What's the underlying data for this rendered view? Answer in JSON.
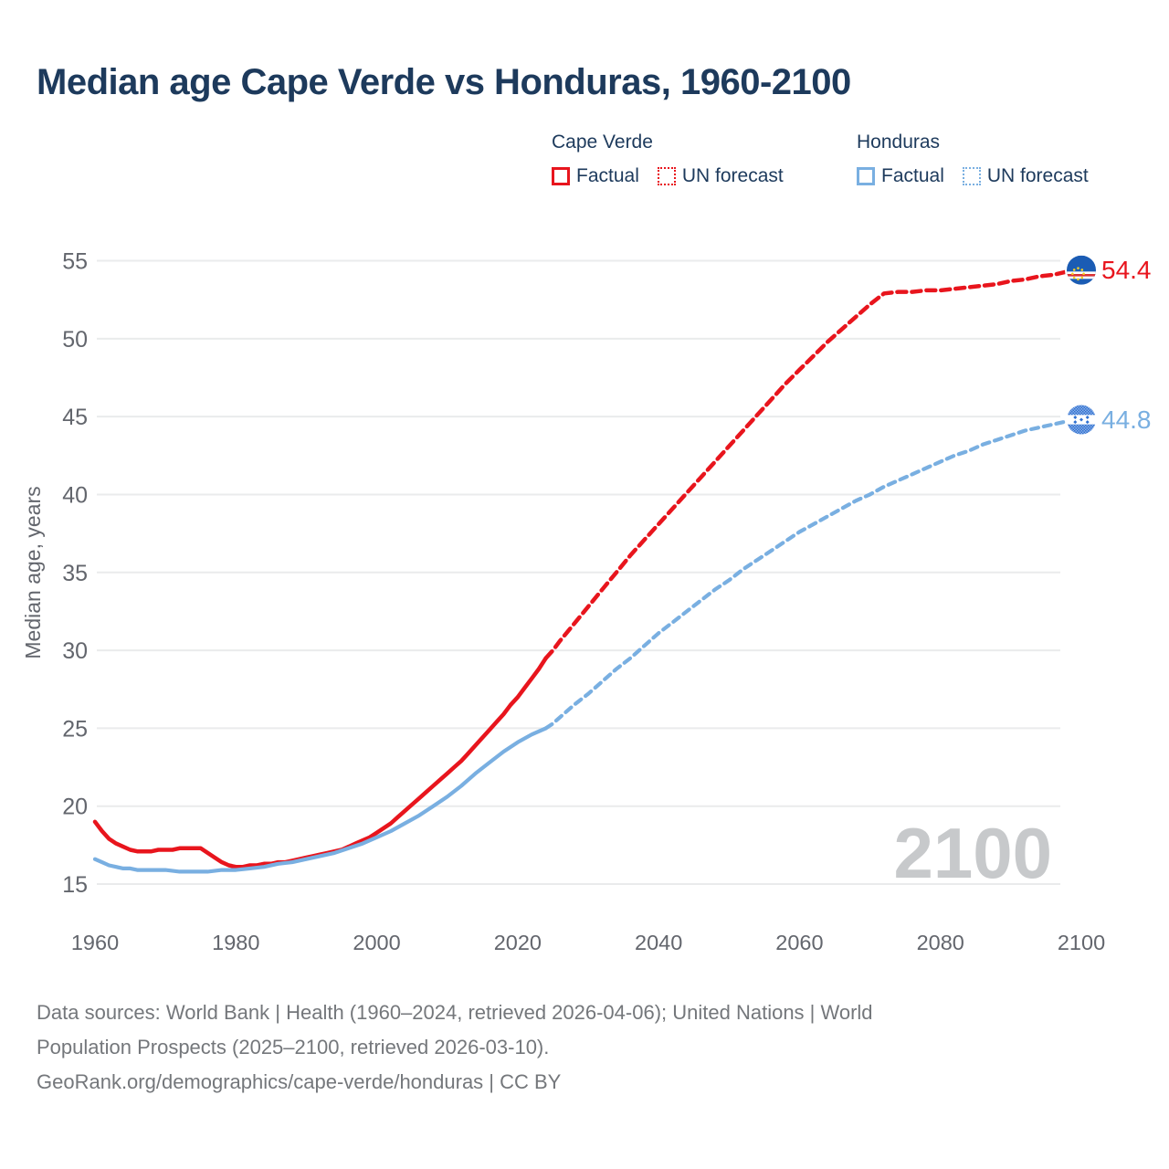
{
  "page": {
    "title": "Median age Cape Verde vs Honduras, 1960-2100"
  },
  "legend": {
    "groups": [
      {
        "label": "Cape Verde",
        "color": "#e8151d",
        "items": [
          {
            "label": "Factual",
            "style": "solid"
          },
          {
            "label": "UN forecast",
            "style": "dotted"
          }
        ]
      },
      {
        "label": "Honduras",
        "color": "#79afe1",
        "items": [
          {
            "label": "Factual",
            "style": "solid"
          },
          {
            "label": "UN forecast",
            "style": "dotted"
          }
        ]
      }
    ]
  },
  "chart_data": {
    "type": "line",
    "title": "Median age Cape Verde vs Honduras, 1960-2100",
    "xlabel": "",
    "ylabel": "Median age, years",
    "xlim": [
      1960,
      2100
    ],
    "ylim": [
      15,
      55
    ],
    "xticks": [
      1960,
      1980,
      2000,
      2020,
      2040,
      2060,
      2080,
      2100
    ],
    "yticks": [
      15,
      20,
      25,
      30,
      35,
      40,
      45,
      50,
      55
    ],
    "grid": "horizontal",
    "legend_position": "top-right",
    "watermark": "2100",
    "series": [
      {
        "name": "Cape Verde factual",
        "country": "Cape Verde",
        "kind": "factual",
        "color": "#e8151d",
        "dash": "solid",
        "points": [
          [
            1960,
            19.0
          ],
          [
            1961,
            18.4
          ],
          [
            1962,
            17.9
          ],
          [
            1963,
            17.6
          ],
          [
            1964,
            17.4
          ],
          [
            1965,
            17.2
          ],
          [
            1966,
            17.1
          ],
          [
            1967,
            17.1
          ],
          [
            1968,
            17.1
          ],
          [
            1969,
            17.2
          ],
          [
            1970,
            17.2
          ],
          [
            1971,
            17.2
          ],
          [
            1972,
            17.3
          ],
          [
            1973,
            17.3
          ],
          [
            1974,
            17.3
          ],
          [
            1975,
            17.3
          ],
          [
            1976,
            17.0
          ],
          [
            1977,
            16.7
          ],
          [
            1978,
            16.4
          ],
          [
            1979,
            16.2
          ],
          [
            1980,
            16.1
          ],
          [
            1981,
            16.1
          ],
          [
            1982,
            16.2
          ],
          [
            1983,
            16.2
          ],
          [
            1984,
            16.3
          ],
          [
            1985,
            16.3
          ],
          [
            1986,
            16.4
          ],
          [
            1987,
            16.4
          ],
          [
            1988,
            16.5
          ],
          [
            1989,
            16.6
          ],
          [
            1990,
            16.7
          ],
          [
            1991,
            16.8
          ],
          [
            1992,
            16.9
          ],
          [
            1993,
            17.0
          ],
          [
            1994,
            17.1
          ],
          [
            1995,
            17.2
          ],
          [
            1996,
            17.4
          ],
          [
            1997,
            17.6
          ],
          [
            1998,
            17.8
          ],
          [
            1999,
            18.0
          ],
          [
            2000,
            18.3
          ],
          [
            2001,
            18.6
          ],
          [
            2002,
            18.9
          ],
          [
            2003,
            19.3
          ],
          [
            2004,
            19.7
          ],
          [
            2005,
            20.1
          ],
          [
            2006,
            20.5
          ],
          [
            2007,
            20.9
          ],
          [
            2008,
            21.3
          ],
          [
            2009,
            21.7
          ],
          [
            2010,
            22.1
          ],
          [
            2011,
            22.5
          ],
          [
            2012,
            22.9
          ],
          [
            2013,
            23.4
          ],
          [
            2014,
            23.9
          ],
          [
            2015,
            24.4
          ],
          [
            2016,
            24.9
          ],
          [
            2017,
            25.4
          ],
          [
            2018,
            25.9
          ],
          [
            2019,
            26.5
          ],
          [
            2020,
            27.0
          ],
          [
            2021,
            27.6
          ],
          [
            2022,
            28.2
          ],
          [
            2023,
            28.8
          ],
          [
            2024,
            29.5
          ]
        ]
      },
      {
        "name": "Cape Verde UN forecast",
        "country": "Cape Verde",
        "kind": "forecast",
        "color": "#e8151d",
        "dash": "dashed",
        "points": [
          [
            2024,
            29.5
          ],
          [
            2025,
            30.0
          ],
          [
            2026,
            30.6
          ],
          [
            2028,
            31.7
          ],
          [
            2030,
            32.8
          ],
          [
            2032,
            33.9
          ],
          [
            2034,
            35.0
          ],
          [
            2036,
            36.1
          ],
          [
            2038,
            37.1
          ],
          [
            2040,
            38.1
          ],
          [
            2042,
            39.1
          ],
          [
            2044,
            40.1
          ],
          [
            2046,
            41.1
          ],
          [
            2048,
            42.1
          ],
          [
            2050,
            43.1
          ],
          [
            2052,
            44.1
          ],
          [
            2054,
            45.1
          ],
          [
            2056,
            46.1
          ],
          [
            2058,
            47.1
          ],
          [
            2060,
            48.0
          ],
          [
            2062,
            48.9
          ],
          [
            2064,
            49.8
          ],
          [
            2066,
            50.6
          ],
          [
            2068,
            51.4
          ],
          [
            2070,
            52.2
          ],
          [
            2072,
            52.9
          ],
          [
            2074,
            53.0
          ],
          [
            2076,
            53.0
          ],
          [
            2078,
            53.1
          ],
          [
            2080,
            53.1
          ],
          [
            2082,
            53.2
          ],
          [
            2084,
            53.3
          ],
          [
            2086,
            53.4
          ],
          [
            2088,
            53.5
          ],
          [
            2090,
            53.7
          ],
          [
            2092,
            53.8
          ],
          [
            2094,
            54.0
          ],
          [
            2096,
            54.1
          ],
          [
            2098,
            54.3
          ],
          [
            2100,
            54.4
          ]
        ]
      },
      {
        "name": "Honduras factual",
        "country": "Honduras",
        "kind": "factual",
        "color": "#79afe1",
        "dash": "solid",
        "points": [
          [
            1960,
            16.6
          ],
          [
            1961,
            16.4
          ],
          [
            1962,
            16.2
          ],
          [
            1963,
            16.1
          ],
          [
            1964,
            16.0
          ],
          [
            1965,
            16.0
          ],
          [
            1966,
            15.9
          ],
          [
            1968,
            15.9
          ],
          [
            1970,
            15.9
          ],
          [
            1972,
            15.8
          ],
          [
            1974,
            15.8
          ],
          [
            1976,
            15.8
          ],
          [
            1978,
            15.9
          ],
          [
            1980,
            15.9
          ],
          [
            1982,
            16.0
          ],
          [
            1984,
            16.1
          ],
          [
            1986,
            16.3
          ],
          [
            1988,
            16.4
          ],
          [
            1990,
            16.6
          ],
          [
            1992,
            16.8
          ],
          [
            1994,
            17.0
          ],
          [
            1996,
            17.3
          ],
          [
            1998,
            17.6
          ],
          [
            2000,
            18.0
          ],
          [
            2002,
            18.4
          ],
          [
            2004,
            18.9
          ],
          [
            2006,
            19.4
          ],
          [
            2008,
            20.0
          ],
          [
            2010,
            20.6
          ],
          [
            2012,
            21.3
          ],
          [
            2014,
            22.1
          ],
          [
            2016,
            22.8
          ],
          [
            2018,
            23.5
          ],
          [
            2020,
            24.1
          ],
          [
            2022,
            24.6
          ],
          [
            2024,
            25.0
          ]
        ]
      },
      {
        "name": "Honduras UN forecast",
        "country": "Honduras",
        "kind": "forecast",
        "color": "#79afe1",
        "dash": "dashed",
        "points": [
          [
            2024,
            25.0
          ],
          [
            2025,
            25.3
          ],
          [
            2026,
            25.7
          ],
          [
            2028,
            26.5
          ],
          [
            2030,
            27.2
          ],
          [
            2032,
            28.0
          ],
          [
            2034,
            28.8
          ],
          [
            2036,
            29.5
          ],
          [
            2038,
            30.3
          ],
          [
            2040,
            31.1
          ],
          [
            2042,
            31.8
          ],
          [
            2044,
            32.5
          ],
          [
            2046,
            33.2
          ],
          [
            2048,
            33.9
          ],
          [
            2050,
            34.5
          ],
          [
            2052,
            35.2
          ],
          [
            2054,
            35.8
          ],
          [
            2056,
            36.4
          ],
          [
            2058,
            37.0
          ],
          [
            2060,
            37.6
          ],
          [
            2062,
            38.1
          ],
          [
            2064,
            38.6
          ],
          [
            2066,
            39.1
          ],
          [
            2068,
            39.6
          ],
          [
            2070,
            40.0
          ],
          [
            2072,
            40.5
          ],
          [
            2074,
            40.9
          ],
          [
            2076,
            41.3
          ],
          [
            2078,
            41.7
          ],
          [
            2080,
            42.1
          ],
          [
            2082,
            42.5
          ],
          [
            2084,
            42.8
          ],
          [
            2086,
            43.2
          ],
          [
            2088,
            43.5
          ],
          [
            2090,
            43.8
          ],
          [
            2092,
            44.1
          ],
          [
            2094,
            44.3
          ],
          [
            2096,
            44.5
          ],
          [
            2098,
            44.7
          ],
          [
            2100,
            44.8
          ]
        ]
      }
    ],
    "end_labels": [
      {
        "label": "54.4",
        "value": 54.4,
        "year": 2100,
        "color": "#e8151d",
        "flag": "cape-verde"
      },
      {
        "label": "44.8",
        "value": 44.8,
        "year": 2100,
        "color": "#79afe1",
        "flag": "honduras"
      }
    ]
  },
  "footer": {
    "lines": [
      "Data sources: World Bank | Health (1960–2024, retrieved 2026-04-06); United Nations | World",
      "Population Prospects (2025–2100, retrieved 2026-03-10).",
      "GeoRank.org/demographics/cape-verde/honduras | CC BY"
    ]
  }
}
